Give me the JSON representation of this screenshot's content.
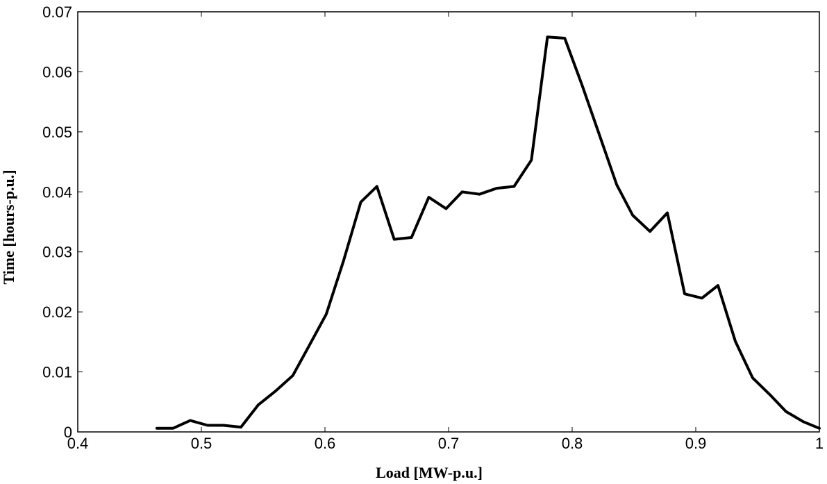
{
  "chart_data": {
    "type": "line",
    "title": "",
    "xlabel": "Load [MW-p.u.]",
    "ylabel": "Time [hours-p.u.]",
    "xlim": [
      0.4,
      1.0
    ],
    "ylim": [
      0,
      0.07
    ],
    "xticks": [
      "0.4",
      "0.5",
      "0.6",
      "0.7",
      "0.8",
      "0.9",
      "1"
    ],
    "yticks": [
      "0",
      "0.01",
      "0.02",
      "0.03",
      "0.04",
      "0.05",
      "0.06",
      "0.07"
    ],
    "grid": false,
    "legend": "none",
    "series": [
      {
        "color": "#000000",
        "x": [
          0.464,
          0.477,
          0.491,
          0.505,
          0.518,
          0.532,
          0.546,
          0.56,
          0.574,
          0.587,
          0.601,
          0.615,
          0.629,
          0.642,
          0.656,
          0.67,
          0.684,
          0.698,
          0.711,
          0.725,
          0.739,
          0.753,
          0.767,
          0.78,
          0.794,
          0.808,
          0.822,
          0.836,
          0.849,
          0.863,
          0.877,
          0.891,
          0.905,
          0.918,
          0.932,
          0.946,
          0.96,
          0.973,
          0.987,
          1.0
        ],
        "y": [
          0.0006,
          0.0006,
          0.0019,
          0.0011,
          0.0011,
          0.0008,
          0.0045,
          0.0068,
          0.0094,
          0.0143,
          0.0196,
          0.0285,
          0.0383,
          0.0409,
          0.0321,
          0.0324,
          0.0391,
          0.0372,
          0.04,
          0.0396,
          0.0406,
          0.0409,
          0.0453,
          0.0658,
          0.0656,
          0.0578,
          0.0495,
          0.0412,
          0.0361,
          0.0334,
          0.0365,
          0.023,
          0.0223,
          0.0244,
          0.0151,
          0.009,
          0.0062,
          0.0034,
          0.0017,
          0.0006
        ]
      }
    ]
  }
}
